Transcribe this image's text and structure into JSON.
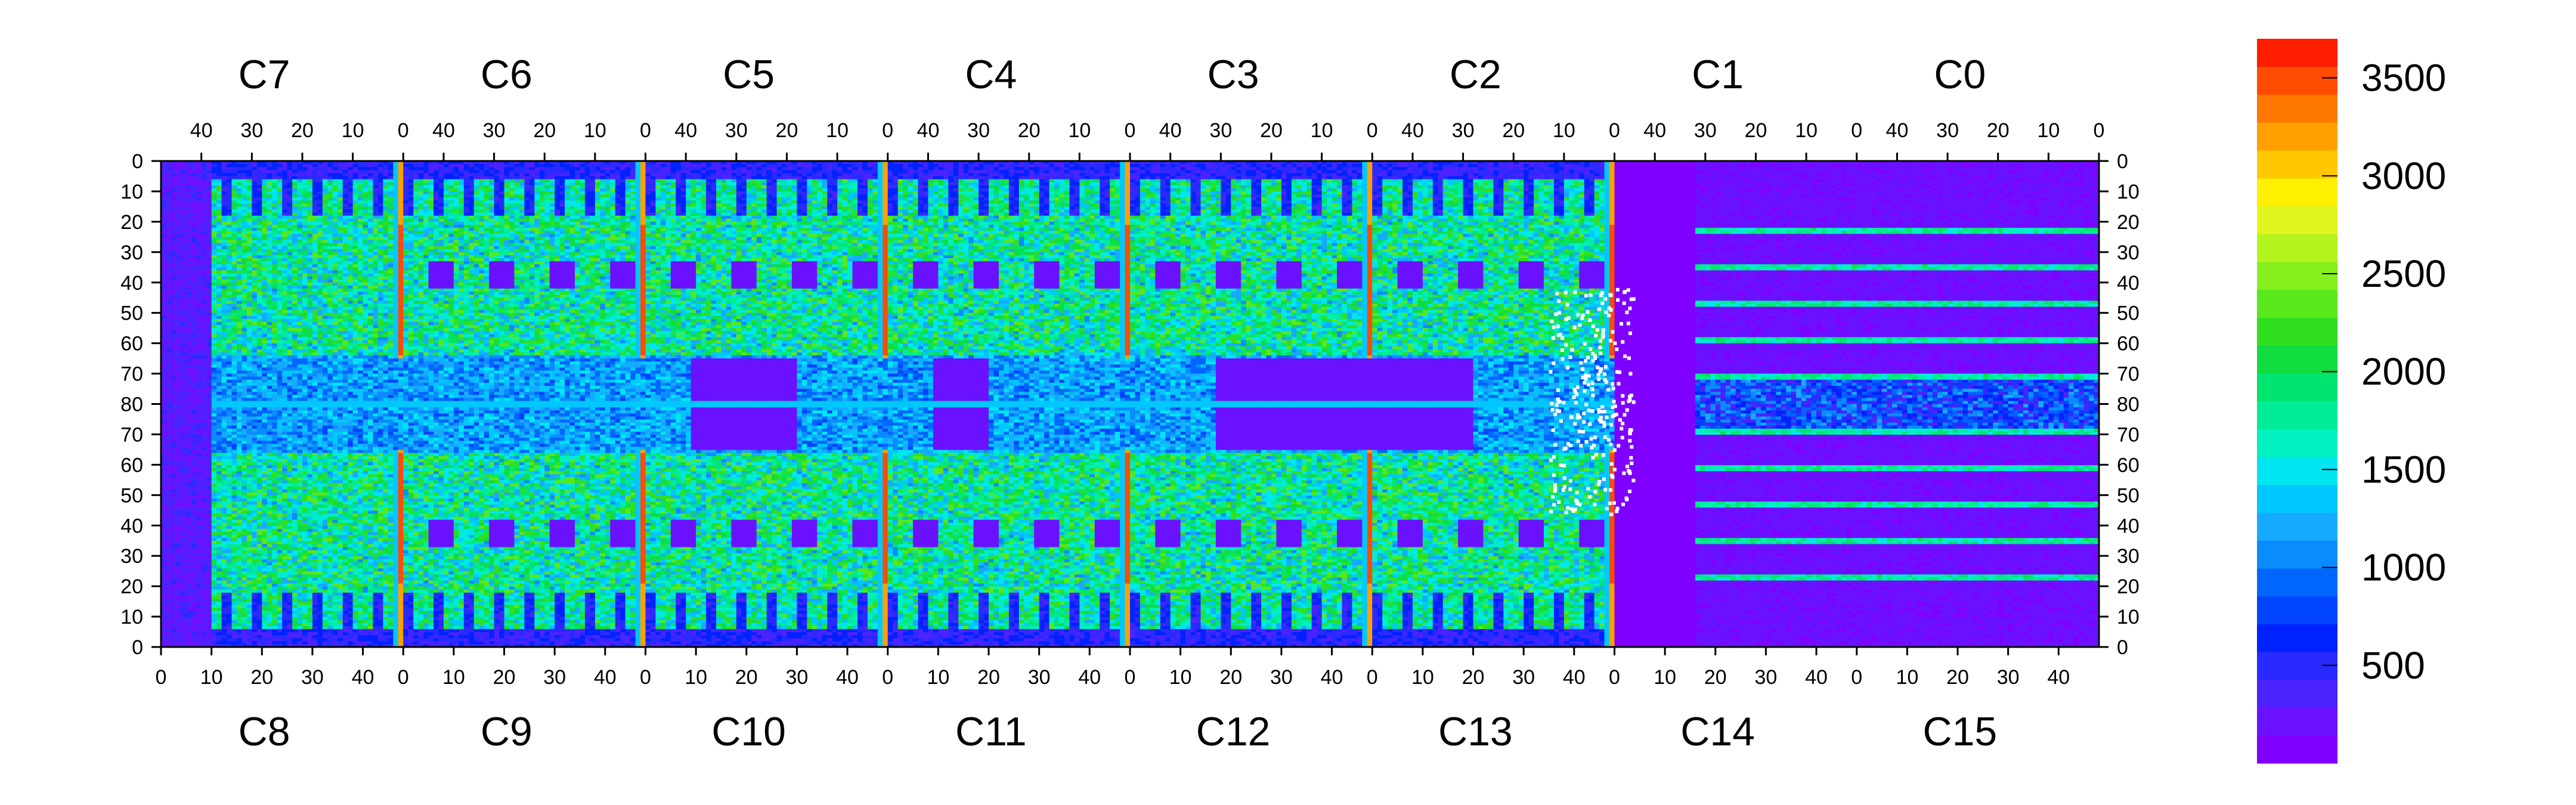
{
  "chart_data": {
    "type": "heatmap",
    "title": "",
    "xlabel": "",
    "ylabel": "",
    "grid": false,
    "legend": "color scale on the right",
    "top_chip_labels": [
      "C7",
      "C6",
      "C5",
      "C4",
      "C3",
      "C2",
      "C1",
      "C0"
    ],
    "bottom_chip_labels": [
      "C8",
      "C9",
      "C10",
      "C11",
      "C12",
      "C13",
      "C14",
      "C15"
    ],
    "top_tick_labels": [
      "40",
      "30",
      "20",
      "10",
      "0"
    ],
    "bottom_tick_labels": [
      "0",
      "10",
      "20",
      "30",
      "40"
    ],
    "y_tick_labels": [
      "0",
      "10",
      "20",
      "30",
      "40",
      "50",
      "60",
      "70",
      "80",
      "70",
      "60",
      "50",
      "40",
      "30",
      "20",
      "10",
      "0"
    ],
    "colorbar": {
      "min": 0,
      "max": 3700,
      "tick_values": [
        500,
        1000,
        1500,
        2000,
        2500,
        3000,
        3500
      ],
      "tick_labels": [
        "500",
        "1000",
        "1500",
        "2000",
        "2500",
        "3000",
        "3500"
      ],
      "colors": [
        "#7f00ff",
        "#6a12ff",
        "#4c22ff",
        "#2a2aff",
        "#0022ff",
        "#0044ff",
        "#0066ff",
        "#0a8cff",
        "#16aaff",
        "#00c8ff",
        "#00e6f0",
        "#00f0c0",
        "#00ec98",
        "#00e470",
        "#10dc40",
        "#30e020",
        "#58e81c",
        "#86ef1e",
        "#b4f41e",
        "#e0f41e",
        "#fff000",
        "#ffc800",
        "#ffa000",
        "#ff7800",
        "#ff4c00",
        "#ff1e00"
      ]
    },
    "summary": {
      "grid_cols_per_chip": 48,
      "grid_rows_per_half": 80,
      "hot_columns_value": 3500,
      "dead_region_value": 100,
      "typical_active_value": 1600
    }
  }
}
